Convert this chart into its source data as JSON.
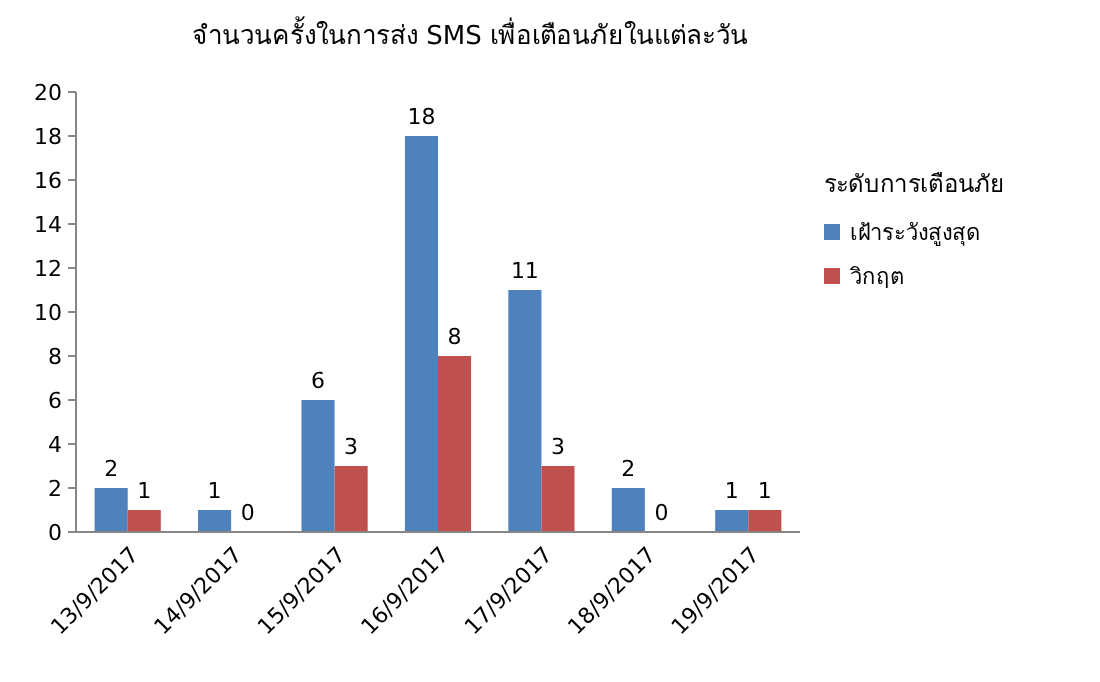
{
  "chart_data": {
    "type": "bar",
    "title": "จำนวนครั้งในการส่ง SMS เพื่อเตือนภัยในแต่ละวัน",
    "legend_title": "ระดับการเตือนภัย",
    "categories": [
      "13/9/2017",
      "14/9/2017",
      "15/9/2017",
      "16/9/2017",
      "17/9/2017",
      "18/9/2017",
      "19/9/2017"
    ],
    "series": [
      {
        "name": "เฝ้าระวังสูงสุด",
        "color": "#4f81bd",
        "values": [
          2,
          1,
          6,
          18,
          11,
          2,
          1
        ]
      },
      {
        "name": "วิกฤต",
        "color": "#c0504d",
        "values": [
          1,
          0,
          3,
          8,
          3,
          0,
          1
        ]
      }
    ],
    "ylim": [
      0,
      20
    ],
    "yticks": [
      0,
      2,
      4,
      6,
      8,
      10,
      12,
      14,
      16,
      18,
      20
    ],
    "data_labels": true,
    "legend": "right",
    "grid": false
  }
}
